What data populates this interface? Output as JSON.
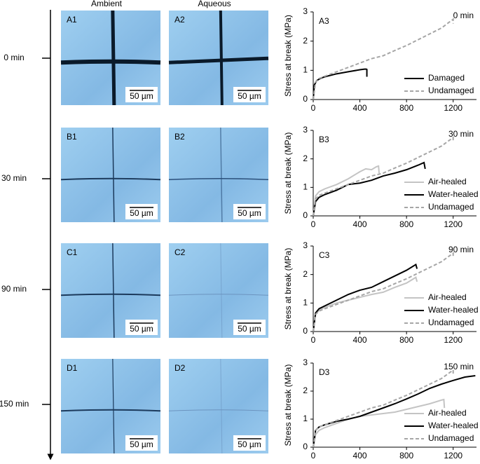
{
  "figure": {
    "columns": [
      "Ambient",
      "Aqueous"
    ],
    "times": [
      "0 min",
      "30 min",
      "90 min",
      "150 min"
    ],
    "panels": [
      {
        "label": "A1",
        "scale": "50 µm"
      },
      {
        "label": "A2",
        "scale": "50 µm"
      },
      {
        "label": "B1",
        "scale": "50 µm"
      },
      {
        "label": "B2",
        "scale": "50 µm"
      },
      {
        "label": "C1",
        "scale": "50 µm"
      },
      {
        "label": "C2",
        "scale": "50 µm"
      },
      {
        "label": "D1",
        "scale": "50 µm"
      },
      {
        "label": "D2",
        "scale": "50 µm"
      }
    ]
  },
  "chart_data": [
    {
      "type": "line",
      "panel": "A3",
      "annotation": "0 min",
      "y_label": "Stress at break (MPa)",
      "xlim": [
        0,
        1400
      ],
      "xticks": [
        0,
        400,
        800,
        1200
      ],
      "ylim": [
        0,
        3
      ],
      "yticks": [
        0,
        1,
        2,
        3
      ],
      "legend": "lower right",
      "series": [
        {
          "name": "Damaged",
          "color": "#000000",
          "style": "solid",
          "x": [
            0,
            10,
            30,
            60,
            100,
            200,
            300,
            400,
            440,
            455,
            460,
            460
          ],
          "values": [
            0,
            0.5,
            0.65,
            0.72,
            0.78,
            0.88,
            0.95,
            1.02,
            1.04,
            1.04,
            1.03,
            0.78
          ]
        },
        {
          "name": "Undamaged",
          "color": "#a6a6a6",
          "style": "dashed",
          "x": [
            0,
            20,
            50,
            100,
            200,
            300,
            400,
            500,
            600,
            700,
            800,
            900,
            1000,
            1100,
            1200,
            1200
          ],
          "values": [
            0,
            0.6,
            0.72,
            0.8,
            0.95,
            1.1,
            1.25,
            1.4,
            1.5,
            1.68,
            1.85,
            2.05,
            2.25,
            2.45,
            2.75,
            2.6
          ]
        }
      ]
    },
    {
      "type": "line",
      "panel": "B3",
      "annotation": "30 min",
      "y_label": "Stress at break (MPa)",
      "xlim": [
        0,
        1400
      ],
      "xticks": [
        0,
        400,
        800,
        1200
      ],
      "ylim": [
        0,
        3
      ],
      "yticks": [
        0,
        1,
        2,
        3
      ],
      "legend": "lower right",
      "series": [
        {
          "name": "Air-healed",
          "color": "#c4c4c4",
          "style": "solid",
          "x": [
            0,
            20,
            50,
            100,
            200,
            300,
            400,
            450,
            500,
            540,
            560,
            565
          ],
          "values": [
            0,
            0.7,
            0.85,
            0.95,
            1.1,
            1.3,
            1.55,
            1.65,
            1.62,
            1.72,
            1.75,
            1.5
          ]
        },
        {
          "name": "Water-healed",
          "color": "#000000",
          "style": "solid",
          "x": [
            0,
            20,
            50,
            100,
            200,
            300,
            400,
            500,
            600,
            700,
            800,
            900,
            950,
            960
          ],
          "values": [
            0,
            0.5,
            0.65,
            0.75,
            0.9,
            1.1,
            1.15,
            1.25,
            1.4,
            1.5,
            1.62,
            1.78,
            1.87,
            1.65
          ]
        },
        {
          "name": "Undamaged",
          "color": "#a6a6a6",
          "style": "dashed",
          "x": [
            0,
            20,
            50,
            100,
            200,
            300,
            400,
            500,
            600,
            700,
            800,
            900,
            1000,
            1100,
            1200,
            1200
          ],
          "values": [
            0,
            0.6,
            0.72,
            0.8,
            0.95,
            1.1,
            1.25,
            1.4,
            1.5,
            1.68,
            1.85,
            2.05,
            2.25,
            2.45,
            2.75,
            2.6
          ]
        }
      ]
    },
    {
      "type": "line",
      "panel": "C3",
      "annotation": "90 min",
      "y_label": "Stress at break (MPa)",
      "xlim": [
        0,
        1400
      ],
      "xticks": [
        0,
        400,
        800,
        1200
      ],
      "ylim": [
        0,
        3
      ],
      "yticks": [
        0,
        1,
        2,
        3
      ],
      "legend": "lower right",
      "series": [
        {
          "name": "Air-healed",
          "color": "#c4c4c4",
          "style": "solid",
          "x": [
            0,
            20,
            50,
            100,
            200,
            300,
            400,
            500,
            600,
            700,
            800,
            880,
            890
          ],
          "values": [
            0,
            0.6,
            0.75,
            0.85,
            1.0,
            1.1,
            1.2,
            1.3,
            1.38,
            1.55,
            1.7,
            1.9,
            1.75
          ]
        },
        {
          "name": "Water-healed",
          "color": "#000000",
          "style": "solid",
          "x": [
            0,
            20,
            50,
            100,
            200,
            300,
            400,
            500,
            600,
            700,
            800,
            880,
            890
          ],
          "values": [
            0,
            0.65,
            0.8,
            0.9,
            1.1,
            1.3,
            1.45,
            1.55,
            1.75,
            1.95,
            2.15,
            2.35,
            2.2
          ]
        },
        {
          "name": "Undamaged",
          "color": "#a6a6a6",
          "style": "dashed",
          "x": [
            0,
            20,
            50,
            100,
            200,
            300,
            400,
            500,
            600,
            700,
            800,
            900,
            1000,
            1100,
            1200,
            1200
          ],
          "values": [
            0,
            0.6,
            0.72,
            0.8,
            0.95,
            1.1,
            1.25,
            1.4,
            1.5,
            1.68,
            1.85,
            2.05,
            2.25,
            2.45,
            2.75,
            2.6
          ]
        }
      ]
    },
    {
      "type": "line",
      "panel": "D3",
      "annotation": "150 min",
      "y_label": "Stress at break (MPa)",
      "xlim": [
        0,
        1400
      ],
      "xticks": [
        0,
        400,
        800,
        1200
      ],
      "ylim": [
        0,
        3
      ],
      "yticks": [
        0,
        1,
        2,
        3
      ],
      "legend": "lower right",
      "series": [
        {
          "name": "Air-healed",
          "color": "#c4c4c4",
          "style": "solid",
          "x": [
            0,
            20,
            50,
            100,
            200,
            300,
            400,
            500,
            600,
            700,
            800,
            900,
            1000,
            1100,
            1120,
            1125
          ],
          "values": [
            0,
            0.45,
            0.6,
            0.7,
            0.85,
            1.0,
            1.1,
            1.15,
            1.2,
            1.25,
            1.35,
            1.45,
            1.55,
            1.68,
            1.7,
            1.4
          ]
        },
        {
          "name": "Water-healed",
          "color": "#000000",
          "style": "solid",
          "x": [
            0,
            20,
            50,
            100,
            200,
            300,
            400,
            500,
            600,
            700,
            800,
            900,
            1000,
            1100,
            1200,
            1300,
            1390
          ],
          "values": [
            0,
            0.6,
            0.72,
            0.8,
            0.92,
            1.0,
            1.1,
            1.25,
            1.4,
            1.55,
            1.72,
            1.9,
            2.1,
            2.25,
            2.38,
            2.5,
            2.55
          ]
        },
        {
          "name": "Undamaged",
          "color": "#a6a6a6",
          "style": "dashed",
          "x": [
            0,
            20,
            50,
            100,
            200,
            300,
            400,
            500,
            600,
            700,
            800,
            900,
            1000,
            1100,
            1200,
            1200
          ],
          "values": [
            0,
            0.6,
            0.72,
            0.8,
            0.95,
            1.1,
            1.25,
            1.4,
            1.5,
            1.68,
            1.85,
            2.05,
            2.25,
            2.45,
            2.75,
            2.6
          ]
        }
      ]
    }
  ]
}
